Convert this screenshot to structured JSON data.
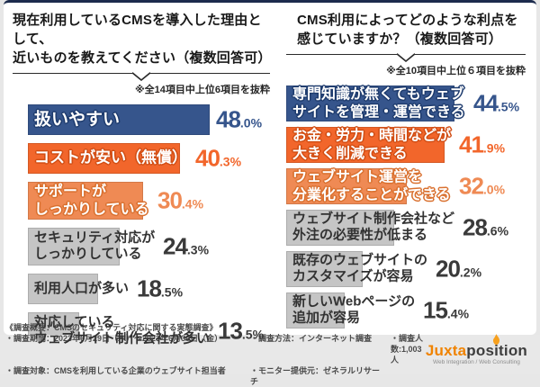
{
  "page": {
    "background": "#e7e7e7",
    "card_background": "#ffffff",
    "top_border_color": "#1c2b4d",
    "footer_background": "#e8e8e8"
  },
  "chart_data": [
    {
      "type": "bar",
      "orientation": "horizontal",
      "unit": "%",
      "xlim": [
        0,
        50
      ],
      "title": "現在利用しているCMSを導入した理由として、近いものを教えてください（複数回答可）",
      "title_lines": [
        "現在利用しているCMSを導入した理由として、",
        "近いものを教えてください（複数回答可）"
      ],
      "note": "※全14項目中上位6項目を抜粋",
      "categories": [
        "扱いやすい",
        "コストが安い（無償）",
        "サポートがしっかりしている",
        "セキュリティ対応がしっかりしている",
        "利用人口が多い",
        "対応しているウェブサイト制作会社が多い"
      ],
      "values": [
        48.0,
        40.3,
        30.4,
        24.3,
        18.5,
        13.5
      ],
      "bars": [
        {
          "label_lines": [
            "扱いやすい"
          ],
          "value": 48.0,
          "color": "#36558c",
          "outline": "#1f3c6e",
          "value_color": "#36558c",
          "label_light": true,
          "label_size": 19
        },
        {
          "label_lines": [
            "コストが安い（無償）"
          ],
          "value": 40.3,
          "color": "#f2662b",
          "outline": "#d14e15",
          "value_color": "#f2662b",
          "label_light": true,
          "label_size": 17
        },
        {
          "label_lines": [
            "サポートが",
            "しっかりしている"
          ],
          "value": 30.4,
          "color": "#ef8a54",
          "outline": "#d9702f",
          "value_color": "#ef8a54",
          "label_light": true,
          "label_size": 16
        },
        {
          "label_lines": [
            "セキュリティ対応が",
            "しっかりしている"
          ],
          "value": 24.3,
          "color": "#c5c5c5",
          "outline": "",
          "value_color": "#3a3a3a",
          "label_light": false,
          "label_size": 15
        },
        {
          "label_lines": [
            "利用人口が多い"
          ],
          "value": 18.5,
          "color": "#c5c5c5",
          "outline": "",
          "value_color": "#3a3a3a",
          "label_light": false,
          "label_size": 15
        },
        {
          "label_lines": [
            "対応している",
            "ウェブサイト制作会社が多い"
          ],
          "value": 13.5,
          "color": "#c5c5c5",
          "outline": "",
          "value_color": "#3a3a3a",
          "label_light": false,
          "label_size": 15
        }
      ]
    },
    {
      "type": "bar",
      "orientation": "horizontal",
      "unit": "%",
      "xlim": [
        0,
        50
      ],
      "title": "CMS利用によってどのような利点を感じていますか？（複数回答可）",
      "title_lines": [
        "CMS利用によってどのような利点を",
        "感じていますか？（複数回答可）"
      ],
      "note": "※全10項目中上位６項目を抜粋",
      "n_label": "（n=1,003人）",
      "categories": [
        "専門知識が無くてもウェブサイトを管理・運営できる",
        "お金・労力・時間などが大きく削減できる",
        "ウェブサイト運営を分業化することができる",
        "ウェブサイト制作会社など外注の必要性が低まる",
        "既存のウェブサイトのカスタマイズが容易",
        "新しいWebページの追加が容易"
      ],
      "values": [
        44.5,
        41.9,
        32.0,
        28.6,
        20.2,
        15.4
      ],
      "bars": [
        {
          "label_lines": [
            "専門知識が無くてもウェブ",
            "サイトを管理・運営できる"
          ],
          "value": 44.5,
          "color": "#36558c",
          "outline": "#1f3c6e",
          "value_color": "#36558c",
          "label_light": true,
          "label_size": 16
        },
        {
          "label_lines": [
            "お金・労力・時間などが",
            "大きく削減できる"
          ],
          "value": 41.9,
          "color": "#f2662b",
          "outline": "#d14e15",
          "value_color": "#f2662b",
          "label_light": true,
          "label_size": 16
        },
        {
          "label_lines": [
            "ウェブサイト運営を",
            "分業化することができる"
          ],
          "value": 32.0,
          "color": "#ef8a54",
          "outline": "#d9702f",
          "value_color": "#ef8a54",
          "label_light": true,
          "label_size": 16
        },
        {
          "label_lines": [
            "ウェブサイト制作会社など",
            "外注の必要性が低まる"
          ],
          "value": 28.6,
          "color": "#c5c5c5",
          "outline": "",
          "value_color": "#3a3a3a",
          "label_light": false,
          "label_size": 15
        },
        {
          "label_lines": [
            "既存のウェブサイトの",
            "カスタマイズが容易"
          ],
          "value": 20.2,
          "color": "#c5c5c5",
          "outline": "",
          "value_color": "#3a3a3a",
          "label_light": false,
          "label_size": 15
        },
        {
          "label_lines": [
            "新しいWebページの",
            "追加が容易"
          ],
          "value": 15.4,
          "color": "#c5c5c5",
          "outline": "",
          "value_color": "#3a3a3a",
          "label_light": false,
          "label_size": 15
        }
      ]
    }
  ],
  "footer": {
    "survey_line": "《調査概要：CMSのセキュリティ対応に関する実態調査》",
    "period": "・調査期間：2023年6月29日（木）～2023年6月30日（金）",
    "method": "・調査方法：インターネット調査",
    "count": "・調査人数:1,003人",
    "target": "・調査対象：CMSを利用している企業のウェブサイト担当者",
    "monitor": "・モニター提供元：ゼネラルリサーチ"
  },
  "logo": {
    "brand_left": "Juxta",
    "brand_right": "position",
    "tagline": "Web Integration / Web Consulting",
    "flame_color": "#f7a01d",
    "brand_left_color": "#f08300",
    "brand_right_color": "#3e3e3e"
  }
}
